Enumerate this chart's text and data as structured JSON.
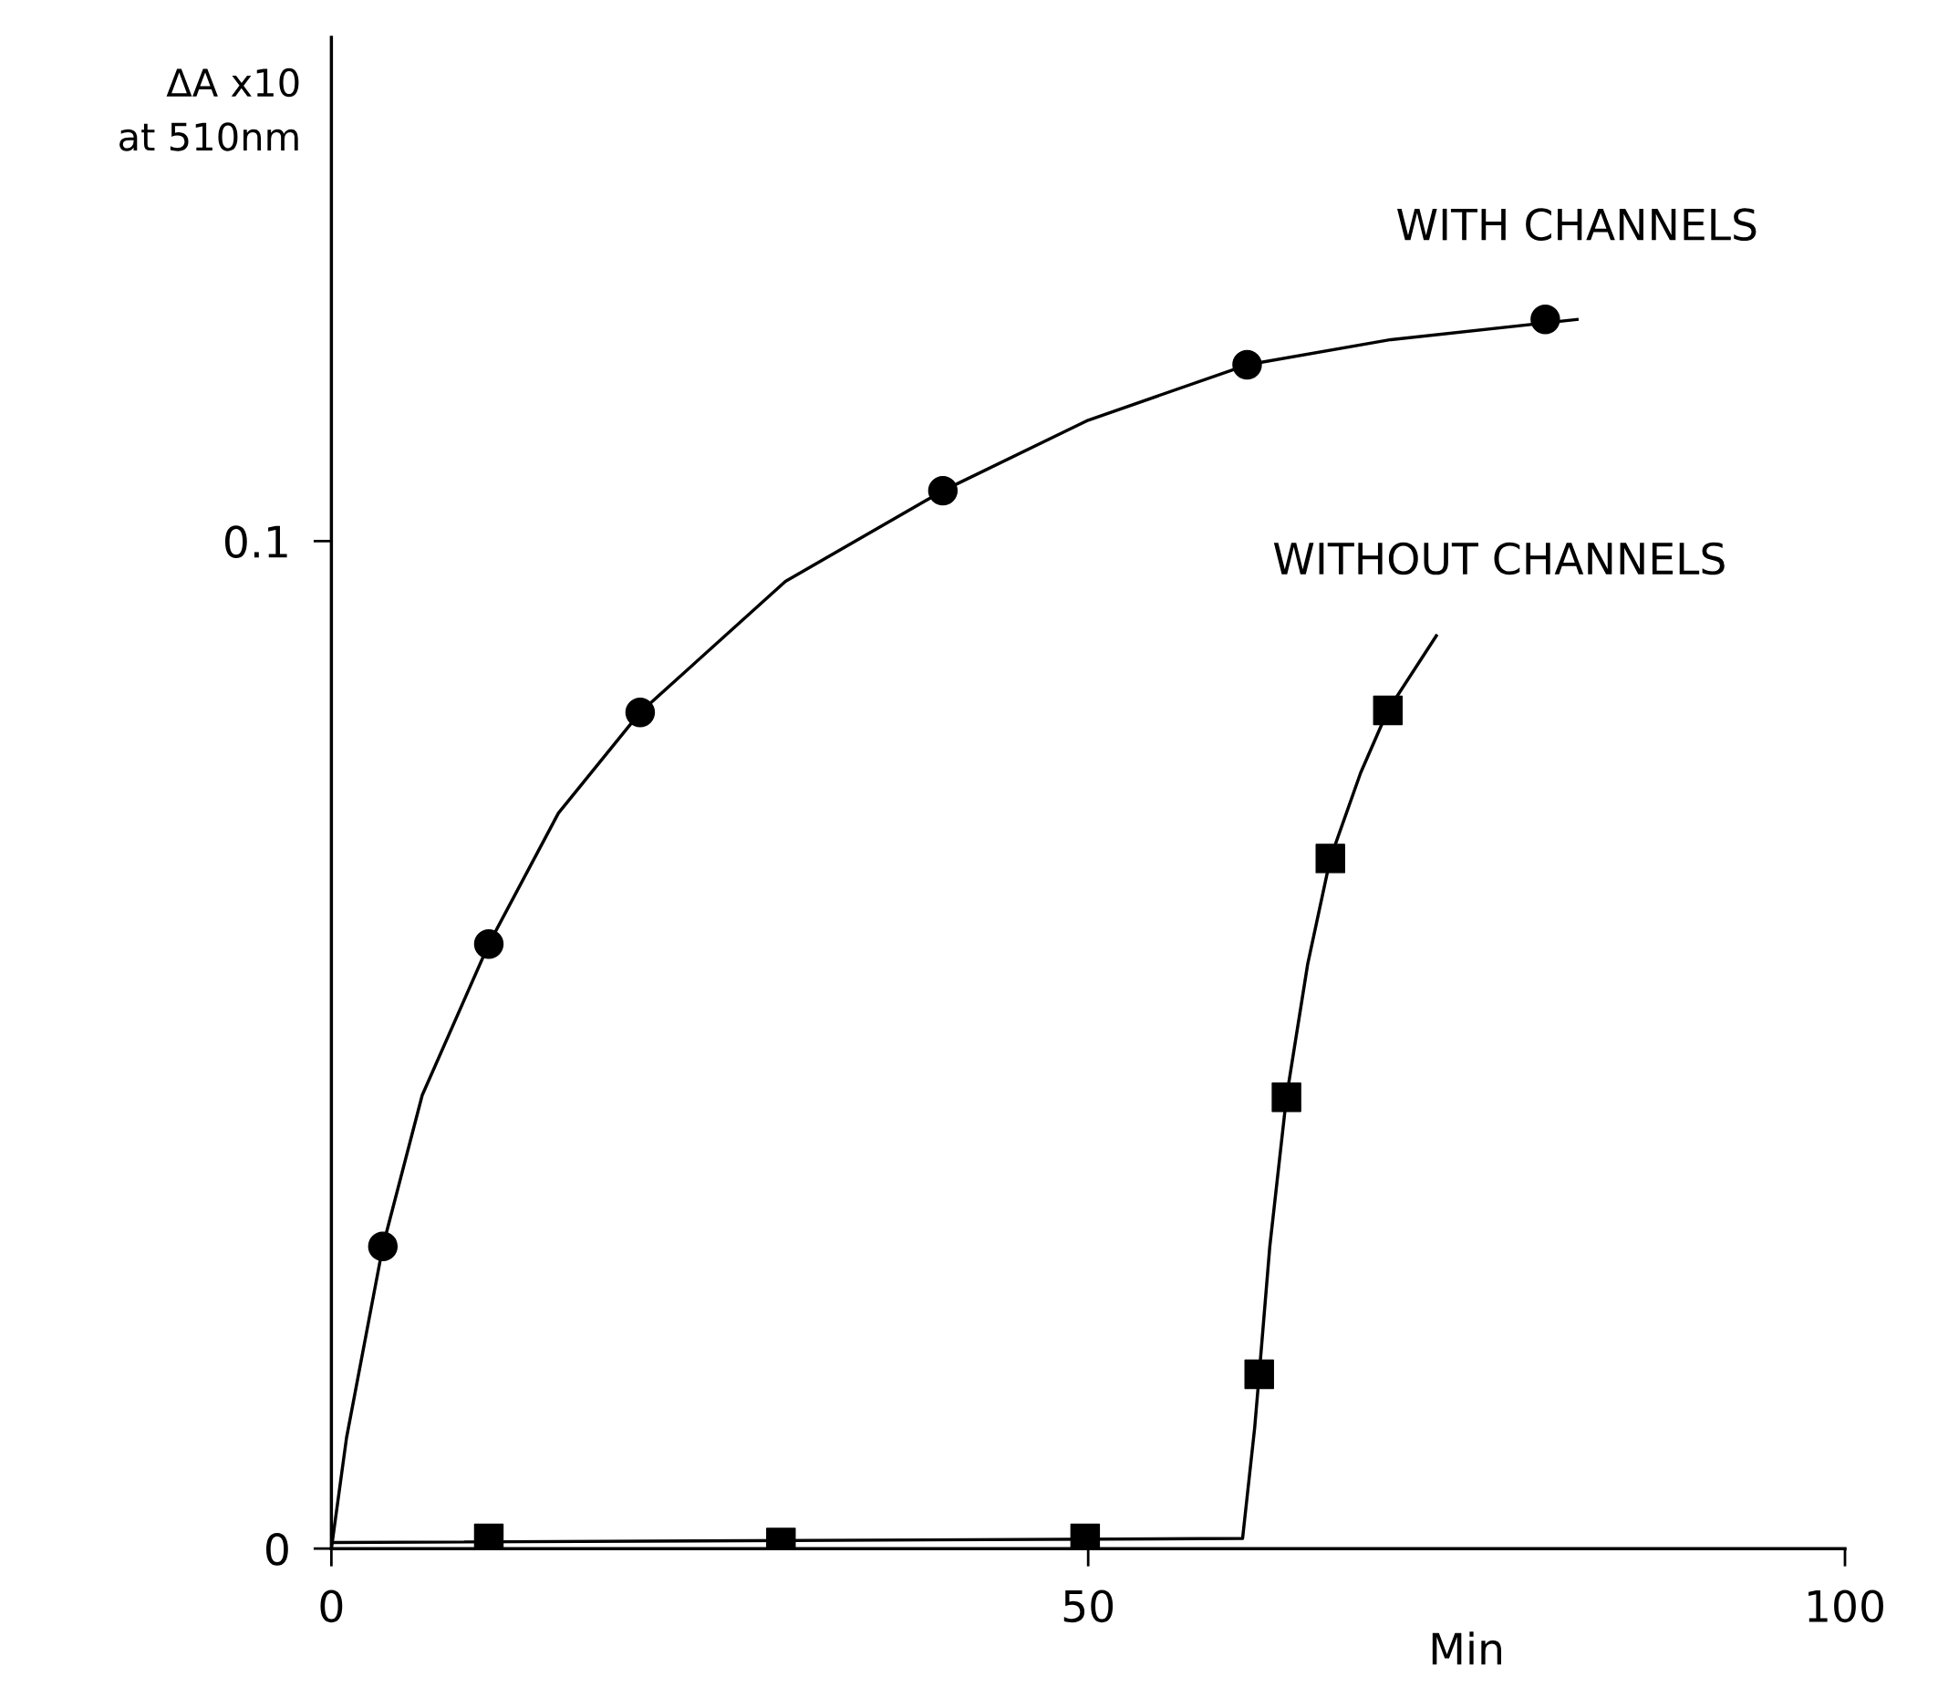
{
  "chart_data": {
    "type": "scatter",
    "ylabel": "ΔA x10\nat 510nm",
    "xlabel": "Min",
    "xlim": [
      0,
      100
    ],
    "ylim": [
      0,
      0.15
    ],
    "xticks": [
      0,
      50,
      100
    ],
    "yticks": [
      0,
      0.1
    ],
    "grid": false,
    "legend": false,
    "series": [
      {
        "type": "line",
        "name": "WITH CHANNELS",
        "color": "#000000",
        "marker": "none",
        "x": [
          0,
          1,
          3.4,
          6,
          10.4,
          15,
          20.4,
          30,
          40.4,
          50,
          60.5,
          70,
          82.3
        ],
        "values": [
          0,
          0.011,
          0.03,
          0.045,
          0.06,
          0.073,
          0.083,
          0.096,
          0.105,
          0.112,
          0.1175,
          0.12,
          0.122
        ]
      },
      {
        "color": "#000000",
        "marker": "circle",
        "x": [
          3.4,
          10.4,
          20.4,
          40.4,
          60.5,
          80.2
        ],
        "values": [
          0.03,
          0.06,
          0.083,
          0.105,
          0.1175,
          0.122
        ]
      },
      {
        "type": "line",
        "name": "WITHOUT CHANNELS",
        "color": "#000000",
        "marker": "none",
        "x": [
          0,
          60.2,
          61,
          61.3,
          62,
          63.1,
          64.5,
          66,
          68,
          69.8,
          73
        ],
        "values": [
          0.0006,
          0.001,
          0.012,
          0.0173,
          0.03,
          0.0448,
          0.058,
          0.0685,
          0.077,
          0.0832,
          0.0906
        ]
      },
      {
        "color": "#000000",
        "marker": "square",
        "x": [
          10.4,
          29.7,
          49.8,
          61.3,
          63.1,
          66.0,
          69.8
        ],
        "values": [
          0.001,
          0.0006,
          0.001,
          0.0173,
          0.0448,
          0.0685,
          0.0832
        ]
      }
    ]
  }
}
